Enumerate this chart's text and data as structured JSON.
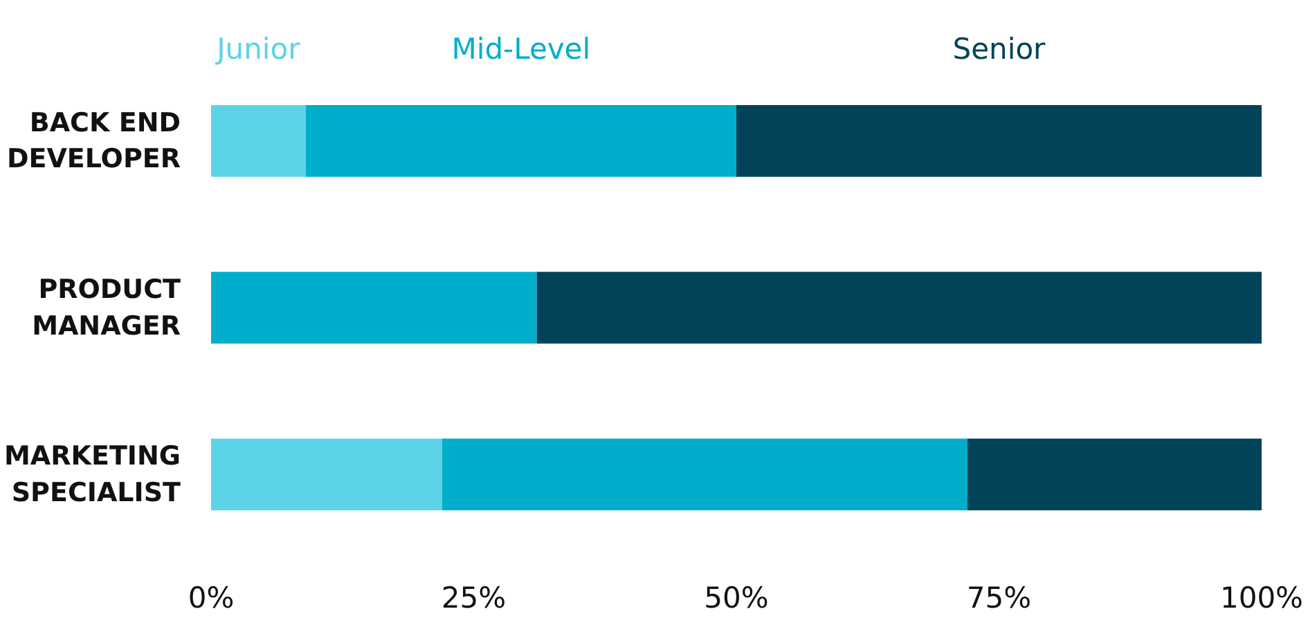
{
  "chart_data": {
    "type": "bar",
    "orientation": "horizontal",
    "stacked": true,
    "categories": [
      "BACK END\nDEVELOPER",
      "PRODUCT\nMANAGER",
      "MARKETING\nSPECIALIST"
    ],
    "series": [
      {
        "name": "Junior",
        "color": "#5dd3e8",
        "values": [
          9,
          0,
          22
        ]
      },
      {
        "name": "Mid-Level",
        "color": "#00aecb",
        "values": [
          41,
          31,
          50
        ]
      },
      {
        "name": "Senior",
        "color": "#02435a",
        "values": [
          50,
          69,
          28
        ]
      }
    ],
    "xlim": [
      0,
      100
    ],
    "xticks": [
      {
        "value": 0,
        "label": "0%"
      },
      {
        "value": 25,
        "label": "25%"
      },
      {
        "value": 50,
        "label": "50%"
      },
      {
        "value": 75,
        "label": "75%"
      },
      {
        "value": 100,
        "label": "100%"
      }
    ],
    "grid": false,
    "legend": "top"
  }
}
